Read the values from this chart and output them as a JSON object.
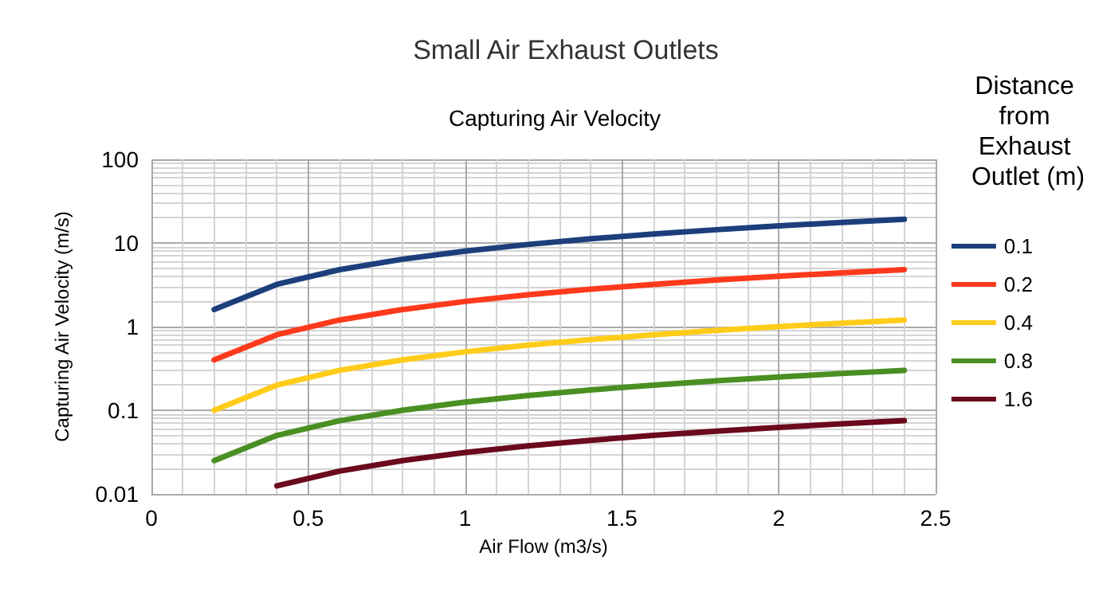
{
  "chart_data": {
    "type": "line",
    "title": "Small Air Exhaust Outlets",
    "subtitle": "Capturing Air Velocity",
    "xlabel": "Air Flow (m3/s)",
    "ylabel": "Capturing Air Velocity (m/s)",
    "legend_title": "Distance from Exhaust Outlet (m)",
    "x": [
      0.2,
      0.4,
      0.6,
      0.8,
      1.0,
      1.2,
      1.4,
      1.6,
      1.8,
      2.0,
      2.2,
      2.4
    ],
    "series": [
      {
        "name": "0.1",
        "color": "#1c3f7c",
        "values": [
          1.6,
          3.2,
          4.8,
          6.4,
          8,
          9.6,
          11.2,
          12.8,
          14.4,
          16,
          17.6,
          19.2
        ]
      },
      {
        "name": "0.2",
        "color": "#ff3a1c",
        "values": [
          0.4,
          0.8,
          1.2,
          1.6,
          2,
          2.4,
          2.8,
          3.2,
          3.6,
          4,
          4.4,
          4.8
        ]
      },
      {
        "name": "0.4",
        "color": "#ffcc1a",
        "values": [
          0.1,
          0.2,
          0.3,
          0.4,
          0.5,
          0.6,
          0.7,
          0.8,
          0.9,
          1.0,
          1.1,
          1.2
        ]
      },
      {
        "name": "0.8",
        "color": "#4a8f22",
        "values": [
          0.025,
          0.05,
          0.075,
          0.1,
          0.125,
          0.15,
          0.175,
          0.2,
          0.225,
          0.25,
          0.275,
          0.3
        ]
      },
      {
        "name": "1.6",
        "color": "#6b0a1e",
        "values": [
          null,
          0.0125,
          0.01875,
          0.025,
          0.03125,
          0.0375,
          0.04375,
          0.05,
          0.05625,
          0.0625,
          0.06875,
          0.075
        ]
      }
    ],
    "xlim": [
      0,
      2.5
    ],
    "xticks": [
      0,
      0.5,
      1,
      1.5,
      2,
      2.5
    ],
    "ylim": [
      0.01,
      100
    ],
    "yticks": [
      0.01,
      0.1,
      1,
      10,
      100
    ],
    "log": "y",
    "grid": true,
    "legend": "right",
    "marker": "none",
    "line_style": "solid"
  }
}
